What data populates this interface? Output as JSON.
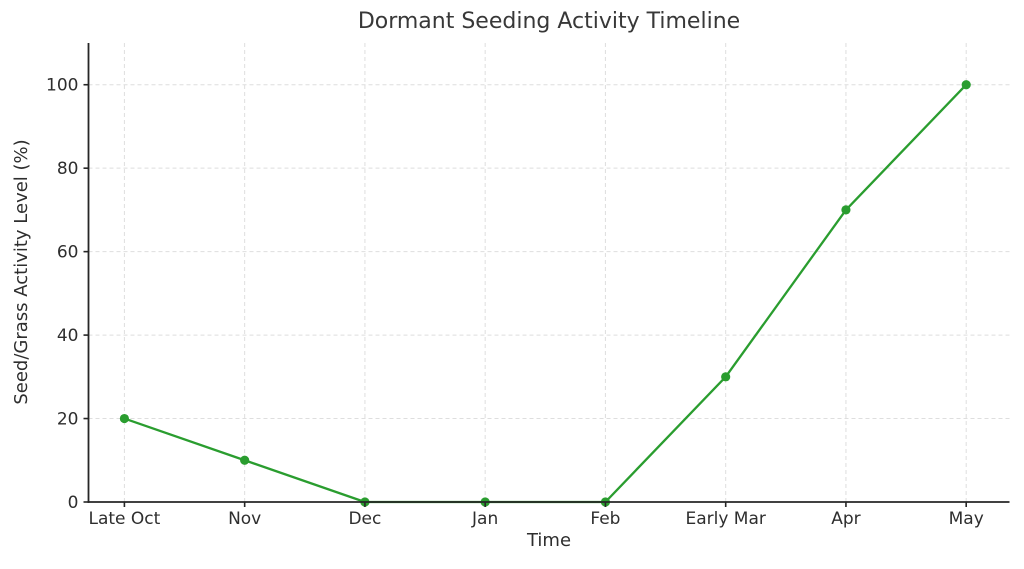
{
  "chart_data": {
    "type": "line",
    "title": "Dormant Seeding Activity Timeline",
    "xlabel": "Time",
    "ylabel": "Seed/Grass Activity Level (%)",
    "categories": [
      "Late Oct",
      "Nov",
      "Dec",
      "Jan",
      "Feb",
      "Early Mar",
      "Apr",
      "May"
    ],
    "series": [
      {
        "name": "Seed/Grass Activity Level",
        "values": [
          20,
          10,
          0,
          0,
          0,
          30,
          70,
          100
        ]
      }
    ],
    "yticks": [
      0,
      20,
      40,
      60,
      80,
      100
    ],
    "ylim": [
      0,
      110
    ],
    "grid": true,
    "grid_style": "dashed",
    "legend": "none",
    "line_color": "#2a9d2f",
    "marker": "circle",
    "grid_color": "#dedede",
    "axis_color": "#262626",
    "text_color": "#2e2e2e",
    "background": "#ffffff"
  }
}
